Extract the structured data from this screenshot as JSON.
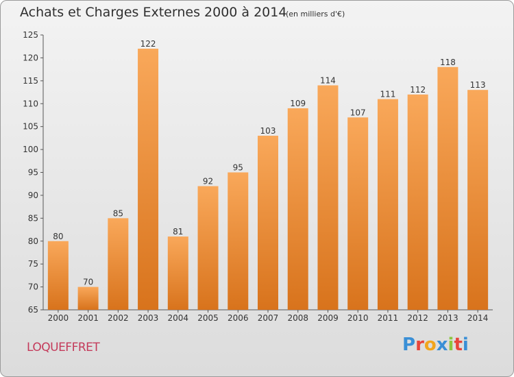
{
  "title": "Achats et Charges Externes 2000 à 2014",
  "subtitle": "(en milliers d'€)",
  "town": "LOQUEFFRET",
  "brand": {
    "letters": [
      "P",
      "r",
      "o",
      "x",
      "i",
      "t",
      "i"
    ],
    "colors": [
      "#3a8fd6",
      "#e8443a",
      "#f2a51d",
      "#3a8fd6",
      "#8cc63f",
      "#e8443a",
      "#3a8fd6"
    ]
  },
  "chart_data": {
    "type": "bar",
    "title": "Achats et Charges Externes 2000 à 2014",
    "categories": [
      "2000",
      "2001",
      "2002",
      "2003",
      "2004",
      "2005",
      "2006",
      "2007",
      "2008",
      "2009",
      "2010",
      "2011",
      "2012",
      "2013",
      "2014"
    ],
    "values": [
      80,
      70,
      85,
      122,
      81,
      92,
      95,
      103,
      109,
      114,
      107,
      111,
      112,
      118,
      113
    ],
    "ylim": [
      65,
      125
    ],
    "yticks": [
      65,
      70,
      75,
      80,
      85,
      90,
      95,
      100,
      105,
      110,
      115,
      120,
      125
    ],
    "grid": false,
    "bar_color": "#f0953a"
  }
}
